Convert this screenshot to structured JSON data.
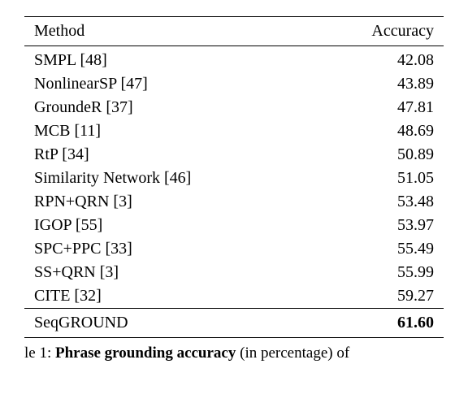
{
  "table": {
    "headers": {
      "method": "Method",
      "accuracy": "Accuracy"
    },
    "rows": [
      {
        "method": "SMPL [48]",
        "accuracy": "42.08"
      },
      {
        "method": "NonlinearSP [47]",
        "accuracy": "43.89"
      },
      {
        "method": "GroundeR [37]",
        "accuracy": "47.81"
      },
      {
        "method": "MCB [11]",
        "accuracy": "48.69"
      },
      {
        "method": "RtP [34]",
        "accuracy": "50.89"
      },
      {
        "method": "Similarity Network [46]",
        "accuracy": "51.05"
      },
      {
        "method": "RPN+QRN [3]",
        "accuracy": "53.48"
      },
      {
        "method": "IGOP [55]",
        "accuracy": "53.97"
      },
      {
        "method": "SPC+PPC [33]",
        "accuracy": "55.49"
      },
      {
        "method": "SS+QRN [3]",
        "accuracy": "55.99"
      },
      {
        "method": "CITE [32]",
        "accuracy": "59.27"
      }
    ],
    "highlight_row": {
      "method": "SeqGROUND",
      "accuracy": "61.60"
    }
  },
  "caption": {
    "prefix": "le 1: ",
    "bold_text": "Phrase grounding accuracy",
    "suffix": " (in percentage) of"
  },
  "style": {
    "background_color": "#ffffff",
    "text_color": "#000000",
    "font_family": "Times New Roman",
    "header_fontsize": 20,
    "cell_fontsize": 20,
    "caption_fontsize": 19,
    "rule_color": "#000000",
    "top_rule_width": 1.5,
    "mid_rule_width": 0.75,
    "bottom_rule_width": 1.5
  }
}
